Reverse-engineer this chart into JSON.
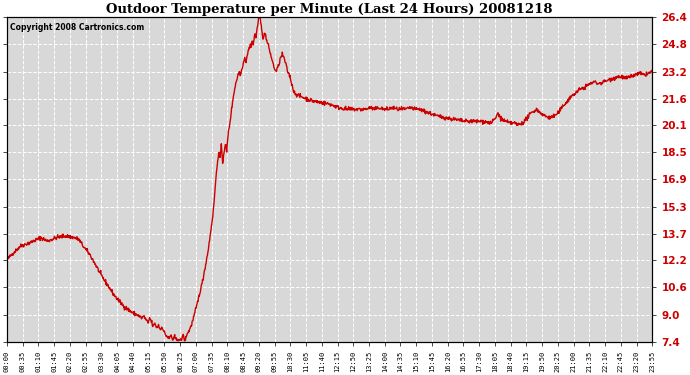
{
  "title": "Outdoor Temperature per Minute (Last 24 Hours) 20081218",
  "copyright": "Copyright 2008 Cartronics.com",
  "line_color": "#cc0000",
  "background_color": "#ffffff",
  "plot_bg_color": "#d8d8d8",
  "grid_color": "#ffffff",
  "ylim": [
    7.4,
    26.4
  ],
  "yticks": [
    7.4,
    9.0,
    10.6,
    12.2,
    13.7,
    15.3,
    16.9,
    18.5,
    20.1,
    21.6,
    23.2,
    24.8,
    26.4
  ],
  "xtick_labels": [
    "00:00",
    "00:35",
    "01:10",
    "01:45",
    "02:20",
    "02:55",
    "03:30",
    "04:05",
    "04:40",
    "05:15",
    "05:50",
    "06:25",
    "07:00",
    "07:35",
    "08:10",
    "08:45",
    "09:20",
    "09:55",
    "10:30",
    "11:05",
    "11:40",
    "12:15",
    "12:50",
    "13:25",
    "14:00",
    "14:35",
    "15:10",
    "15:45",
    "16:20",
    "16:55",
    "17:30",
    "18:05",
    "18:40",
    "19:15",
    "19:50",
    "20:25",
    "21:00",
    "21:35",
    "22:10",
    "22:45",
    "23:20",
    "23:55"
  ],
  "line_width": 1.0,
  "control_points": [
    [
      0,
      12.2
    ],
    [
      10,
      12.5
    ],
    [
      30,
      13.0
    ],
    [
      60,
      13.3
    ],
    [
      75,
      13.5
    ],
    [
      90,
      13.3
    ],
    [
      110,
      13.5
    ],
    [
      130,
      13.6
    ],
    [
      150,
      13.5
    ],
    [
      160,
      13.4
    ],
    [
      170,
      13.0
    ],
    [
      185,
      12.5
    ],
    [
      200,
      11.8
    ],
    [
      210,
      11.3
    ],
    [
      220,
      10.9
    ],
    [
      230,
      10.5
    ],
    [
      240,
      10.1
    ],
    [
      250,
      9.8
    ],
    [
      260,
      9.5
    ],
    [
      270,
      9.3
    ],
    [
      280,
      9.1
    ],
    [
      290,
      9.0
    ],
    [
      300,
      8.8
    ],
    [
      305,
      8.9
    ],
    [
      310,
      8.7
    ],
    [
      315,
      8.5
    ],
    [
      318,
      8.8
    ],
    [
      322,
      8.6
    ],
    [
      326,
      8.3
    ],
    [
      330,
      8.5
    ],
    [
      334,
      8.2
    ],
    [
      338,
      8.4
    ],
    [
      342,
      8.1
    ],
    [
      346,
      8.3
    ],
    [
      350,
      8.0
    ],
    [
      354,
      7.8
    ],
    [
      358,
      7.7
    ],
    [
      362,
      7.6
    ],
    [
      366,
      7.8
    ],
    [
      370,
      7.5
    ],
    [
      374,
      7.7
    ],
    [
      378,
      7.5
    ],
    [
      382,
      7.6
    ],
    [
      386,
      7.5
    ],
    [
      388,
      7.45
    ],
    [
      390,
      7.6
    ],
    [
      392,
      7.8
    ],
    [
      395,
      7.6
    ],
    [
      398,
      7.5
    ],
    [
      400,
      7.8
    ],
    [
      405,
      8.0
    ],
    [
      410,
      8.3
    ],
    [
      415,
      8.7
    ],
    [
      420,
      9.2
    ],
    [
      425,
      9.7
    ],
    [
      430,
      10.3
    ],
    [
      435,
      10.8
    ],
    [
      440,
      11.5
    ],
    [
      445,
      12.2
    ],
    [
      450,
      13.0
    ],
    [
      455,
      14.0
    ],
    [
      460,
      15.0
    ],
    [
      463,
      16.0
    ],
    [
      466,
      17.0
    ],
    [
      469,
      17.8
    ],
    [
      472,
      18.5
    ],
    [
      475,
      18.2
    ],
    [
      478,
      18.8
    ],
    [
      481,
      17.9
    ],
    [
      484,
      18.5
    ],
    [
      487,
      19.0
    ],
    [
      490,
      18.5
    ],
    [
      493,
      19.5
    ],
    [
      496,
      20.0
    ],
    [
      500,
      20.8
    ],
    [
      505,
      21.8
    ],
    [
      510,
      22.5
    ],
    [
      515,
      23.0
    ],
    [
      518,
      23.2
    ],
    [
      521,
      23.0
    ],
    [
      524,
      23.4
    ],
    [
      527,
      23.7
    ],
    [
      530,
      24.0
    ],
    [
      533,
      23.8
    ],
    [
      536,
      24.2
    ],
    [
      539,
      24.5
    ],
    [
      542,
      24.7
    ],
    [
      545,
      24.8
    ],
    [
      547,
      25.0
    ],
    [
      549,
      24.8
    ],
    [
      551,
      25.1
    ],
    [
      553,
      25.4
    ],
    [
      555,
      25.2
    ],
    [
      557,
      25.6
    ],
    [
      559,
      25.9
    ],
    [
      561,
      26.2
    ],
    [
      563,
      26.4
    ],
    [
      565,
      26.3
    ],
    [
      567,
      26.0
    ],
    [
      569,
      25.5
    ],
    [
      571,
      25.0
    ],
    [
      573,
      25.3
    ],
    [
      575,
      25.5
    ],
    [
      577,
      25.3
    ],
    [
      579,
      25.0
    ],
    [
      582,
      24.8
    ],
    [
      585,
      24.5
    ],
    [
      590,
      24.0
    ],
    [
      595,
      23.5
    ],
    [
      600,
      23.2
    ],
    [
      605,
      23.5
    ],
    [
      610,
      24.0
    ],
    [
      614,
      24.2
    ],
    [
      618,
      24.0
    ],
    [
      622,
      23.6
    ],
    [
      626,
      23.2
    ],
    [
      630,
      23.0
    ],
    [
      635,
      22.5
    ],
    [
      640,
      22.0
    ],
    [
      650,
      21.8
    ],
    [
      660,
      21.7
    ],
    [
      670,
      21.6
    ],
    [
      680,
      21.5
    ],
    [
      700,
      21.4
    ],
    [
      720,
      21.3
    ],
    [
      740,
      21.1
    ],
    [
      760,
      21.0
    ],
    [
      780,
      21.0
    ],
    [
      800,
      21.0
    ],
    [
      810,
      21.1
    ],
    [
      820,
      21.0
    ],
    [
      830,
      21.1
    ],
    [
      840,
      21.0
    ],
    [
      850,
      21.0
    ],
    [
      860,
      21.1
    ],
    [
      870,
      21.0
    ],
    [
      880,
      21.0
    ],
    [
      890,
      21.0
    ],
    [
      900,
      21.1
    ],
    [
      910,
      21.0
    ],
    [
      920,
      21.0
    ],
    [
      940,
      20.8
    ],
    [
      960,
      20.6
    ],
    [
      980,
      20.5
    ],
    [
      1000,
      20.4
    ],
    [
      1020,
      20.3
    ],
    [
      1040,
      20.3
    ],
    [
      1060,
      20.3
    ],
    [
      1080,
      20.2
    ],
    [
      1090,
      20.5
    ],
    [
      1095,
      20.8
    ],
    [
      1100,
      20.5
    ],
    [
      1110,
      20.3
    ],
    [
      1120,
      20.2
    ],
    [
      1130,
      20.2
    ],
    [
      1140,
      20.1
    ],
    [
      1150,
      20.2
    ],
    [
      1160,
      20.5
    ],
    [
      1170,
      20.8
    ],
    [
      1180,
      21.0
    ],
    [
      1190,
      20.8
    ],
    [
      1200,
      20.6
    ],
    [
      1210,
      20.5
    ],
    [
      1220,
      20.6
    ],
    [
      1230,
      20.8
    ],
    [
      1240,
      21.2
    ],
    [
      1250,
      21.5
    ],
    [
      1260,
      21.8
    ],
    [
      1270,
      22.0
    ],
    [
      1280,
      22.2
    ],
    [
      1290,
      22.3
    ],
    [
      1300,
      22.5
    ],
    [
      1310,
      22.6
    ],
    [
      1320,
      22.5
    ],
    [
      1330,
      22.6
    ],
    [
      1340,
      22.7
    ],
    [
      1350,
      22.8
    ],
    [
      1360,
      22.9
    ],
    [
      1370,
      22.9
    ],
    [
      1380,
      22.8
    ],
    [
      1390,
      22.9
    ],
    [
      1400,
      23.0
    ],
    [
      1410,
      23.1
    ],
    [
      1420,
      23.0
    ],
    [
      1430,
      23.1
    ],
    [
      1439,
      23.2
    ]
  ]
}
